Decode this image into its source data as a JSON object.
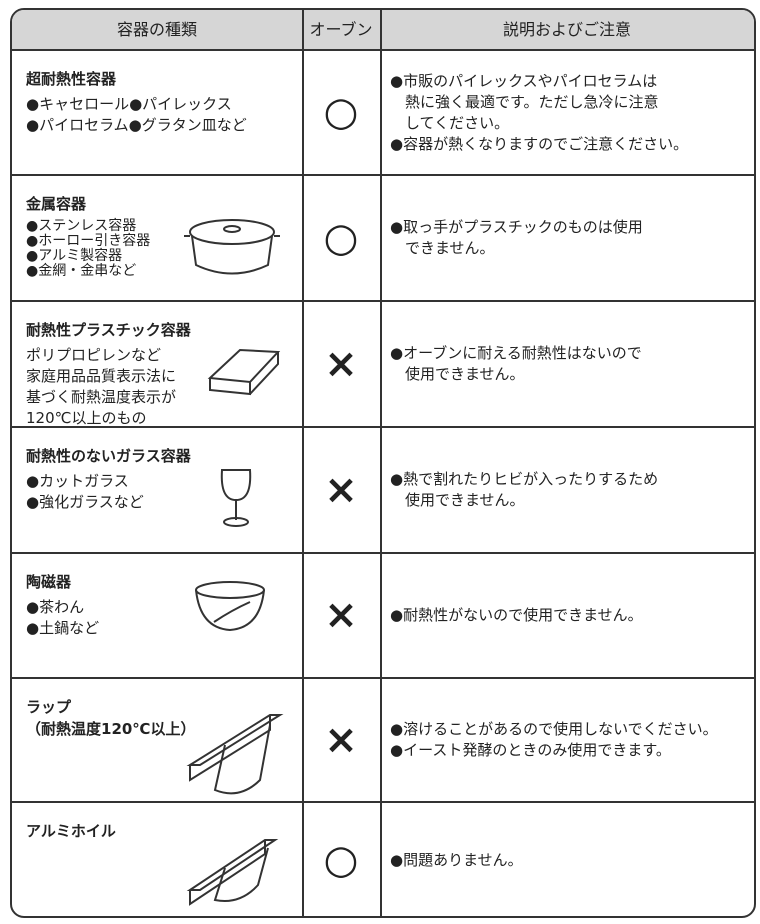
{
  "header": {
    "columns": [
      "容器の種類",
      "オーブン",
      "説明およびご注意"
    ]
  },
  "rows": [
    {
      "title": [
        "超耐熱性容器"
      ],
      "desc": [
        "●キャセロール●パイレックス",
        "●パイロセラム●グラタン皿など"
      ],
      "oven": "○",
      "notes": [
        "●市販のパイレックスやパイロセラムは",
        "　熱に強く最適です。ただし急冷に注意",
        "　してください。",
        "●容器が熱くなりますのでご注意ください。"
      ]
    },
    {
      "title": [
        "金属容器"
      ],
      "desc": [
        "●ステンレス容器",
        "●ホーロー引き容器",
        "●アルミ製容器",
        "●金網・金串など"
      ],
      "oven": "○",
      "notes": [
        "●取っ手がプラスチックのものは使用",
        "　できません。"
      ]
    },
    {
      "title": [
        "耐熱性プラスチック容器"
      ],
      "desc": [
        "ポリプロピレンなど",
        "家庭用品品質表示法に",
        "基づく耐熱温度表示が",
        "120℃以上のもの"
      ],
      "oven": "×",
      "notes": [
        "●オーブンに耐える耐熱性はないので",
        "　使用できません。"
      ]
    },
    {
      "title": [
        "耐熱性のないガラス容器"
      ],
      "desc": [
        "●カットガラス",
        "●強化ガラスなど"
      ],
      "oven": "×",
      "notes": [
        "●熱で割れたりヒビが入ったりするため",
        "　使用できません。"
      ]
    },
    {
      "title": [
        "陶磁器"
      ],
      "desc": [
        "●茶わん",
        "●土鍋など"
      ],
      "oven": "×",
      "notes": [
        "●耐熱性がないので使用できません。"
      ]
    },
    {
      "title": [
        "ラップ",
        "（耐熱温度120℃以上）"
      ],
      "desc": [],
      "oven": "×",
      "notes": [
        "●溶けることがあるので使用しないでください。",
        "●イースト発酵のときのみ使用できます。"
      ]
    },
    {
      "title": [
        "アルミホイル"
      ],
      "desc": [],
      "oven": "○",
      "notes": [
        "●問題ありません。"
      ]
    }
  ]
}
